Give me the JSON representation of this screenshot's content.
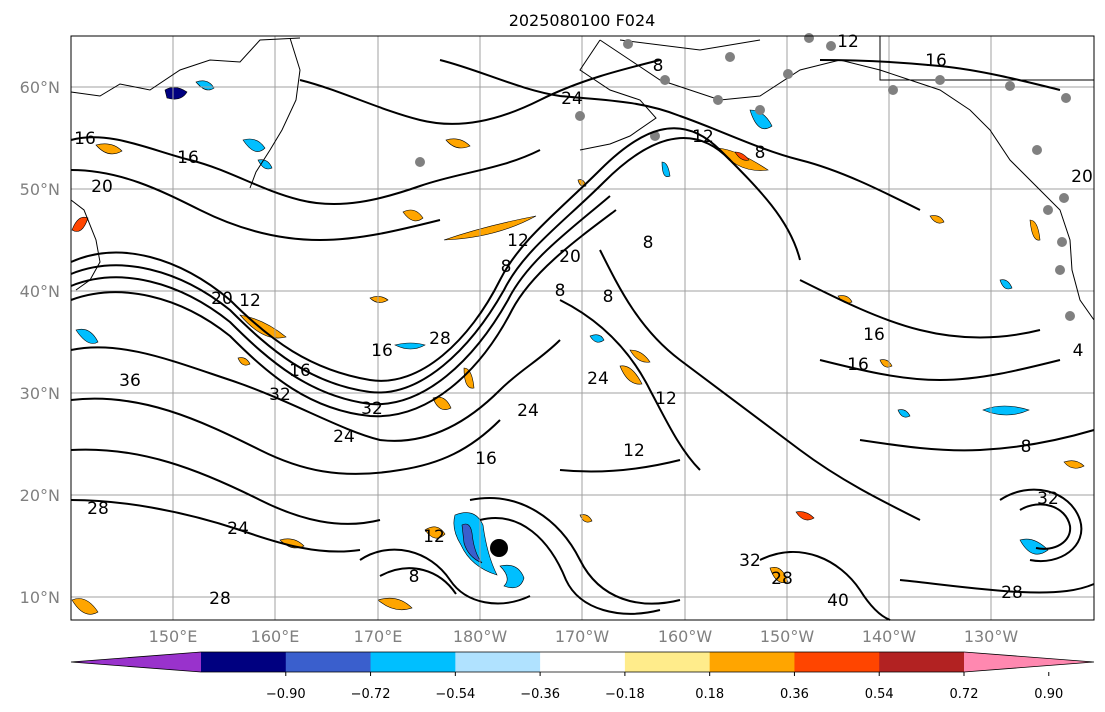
{
  "title": "2025080100 F024",
  "lat_labels": [
    "60°N",
    "50°N",
    "40°N",
    "30°N",
    "20°N",
    "10°N"
  ],
  "lon_labels": [
    "150°E",
    "160°E",
    "170°E",
    "180°W",
    "170°W",
    "160°W",
    "150°W",
    "140°W",
    "130°W"
  ],
  "colorbar": {
    "colors": [
      "#9932cc",
      "#000080",
      "#3a5fcd",
      "#00bfff",
      "#b0e2ff",
      "#ffffff",
      "#ffec8b",
      "#ffa500",
      "#ff4500",
      "#b22222",
      "#ff88b0"
    ],
    "tick_labels": [
      "−0.90",
      "−0.72",
      "−0.54",
      "−0.36",
      "−0.18",
      "0.18",
      "0.36",
      "0.54",
      "0.72",
      "0.90"
    ]
  },
  "contour_labels": [
    "16",
    "16",
    "16",
    "20",
    "12",
    "8",
    "24",
    "12",
    "16",
    "16",
    "16",
    "20",
    "12",
    "20",
    "28",
    "16",
    "8",
    "8",
    "8",
    "36",
    "32",
    "32",
    "24",
    "24",
    "12",
    "12",
    "24",
    "16",
    "8",
    "8",
    "12",
    "28",
    "28",
    "32",
    "28",
    "40",
    "28",
    "32",
    "8",
    "24",
    "12",
    "8",
    "20",
    "4"
  ],
  "storm_marker": {
    "lon": -176.6,
    "lat": 14.9
  }
}
